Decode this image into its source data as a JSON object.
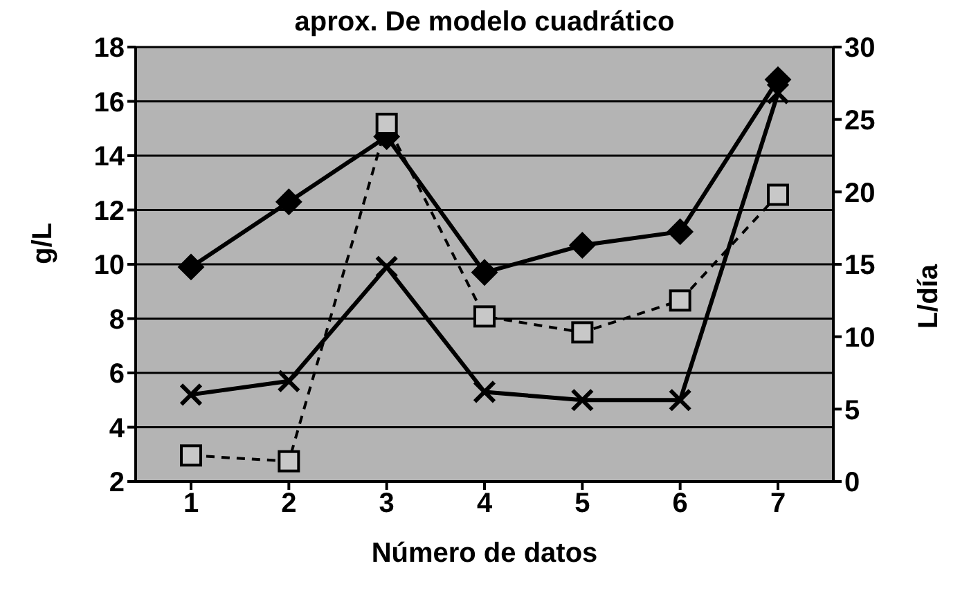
{
  "chart_data": {
    "type": "line",
    "title": "aprox. De modelo cuadrático",
    "xlabel": "Número de datos",
    "ylabel": "g/L",
    "y2label": "L/día",
    "categories": [
      "1",
      "2",
      "3",
      "4",
      "5",
      "6",
      "7"
    ],
    "series": [
      {
        "color": "#000000",
        "marker": "diamond",
        "line_style": "solid",
        "values": [
          9.9,
          12.3,
          14.7,
          9.7,
          10.7,
          11.2,
          16.8
        ]
      },
      {
        "color": "#000000",
        "marker": "cross",
        "line_style": "solid",
        "values": [
          5.2,
          5.7,
          9.9,
          5.3,
          5.0,
          5.0,
          16.3
        ]
      },
      {
        "color": "#000000",
        "marker": "square",
        "line_style": "dashed",
        "axis": "y2",
        "values": [
          1.8,
          1.4,
          24.7,
          11.4,
          10.3,
          12.5,
          19.8
        ]
      }
    ],
    "ylim": [
      2,
      18
    ],
    "yticks": [
      2,
      4,
      6,
      8,
      10,
      12,
      14,
      16,
      18
    ],
    "y2lim": [
      0,
      30
    ],
    "y2ticks": [
      0,
      5,
      10,
      15,
      20,
      25,
      30
    ],
    "grid": "y"
  }
}
